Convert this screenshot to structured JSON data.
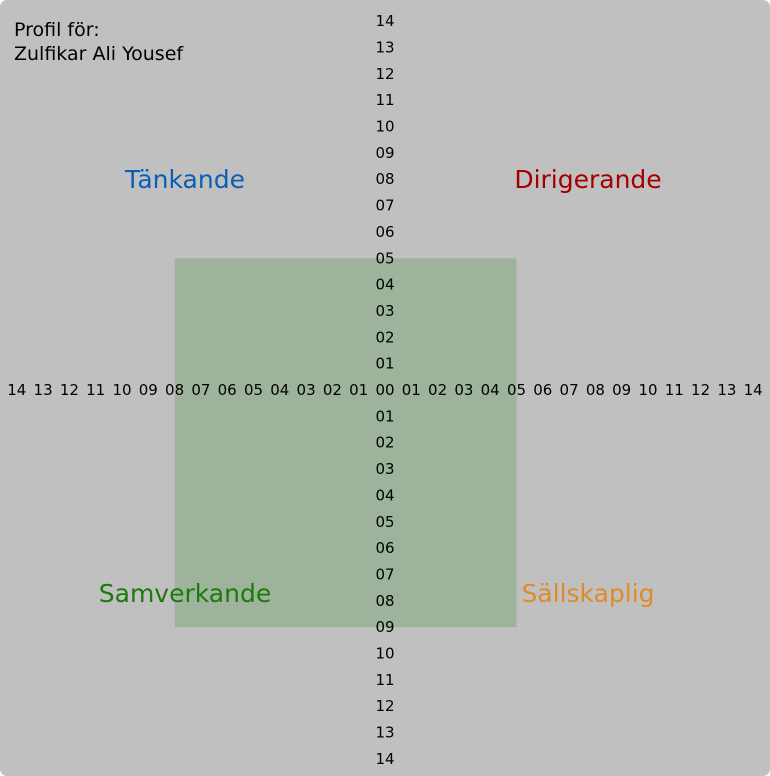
{
  "profile": {
    "label": "Profil för:",
    "name": "Zulfikar Ali Yousef"
  },
  "chart_data": {
    "type": "area",
    "x_ticks_left": [
      "14",
      "13",
      "12",
      "11",
      "10",
      "09",
      "08",
      "07",
      "06",
      "05",
      "04",
      "03",
      "02",
      "01"
    ],
    "x_ticks_right": [
      "01",
      "02",
      "03",
      "04",
      "05",
      "06",
      "07",
      "08",
      "09",
      "10",
      "11",
      "12",
      "13",
      "14"
    ],
    "y_ticks_up": [
      "14",
      "13",
      "12",
      "11",
      "10",
      "09",
      "08",
      "07",
      "06",
      "05",
      "04",
      "03",
      "02",
      "01"
    ],
    "y_ticks_down": [
      "01",
      "02",
      "03",
      "04",
      "05",
      "06",
      "07",
      "08",
      "09",
      "10",
      "11",
      "12",
      "13",
      "14"
    ],
    "origin_label": "00",
    "axis_range": [
      -14,
      14
    ],
    "quadrants": [
      {
        "name": "Tänkande",
        "position": "top-left",
        "color": "#0a5fb4"
      },
      {
        "name": "Dirigerande",
        "position": "top-right",
        "color": "#a50000"
      },
      {
        "name": "Samverkande",
        "position": "bottom-left",
        "color": "#1a7a0a"
      },
      {
        "name": "Sällskaplig",
        "position": "bottom-right",
        "color": "#e08a2a"
      }
    ],
    "profile_area": {
      "left": 8,
      "right": 5,
      "up": 5,
      "down": 9,
      "color": "#9db39b"
    },
    "background_color": "#c0c0c0"
  }
}
